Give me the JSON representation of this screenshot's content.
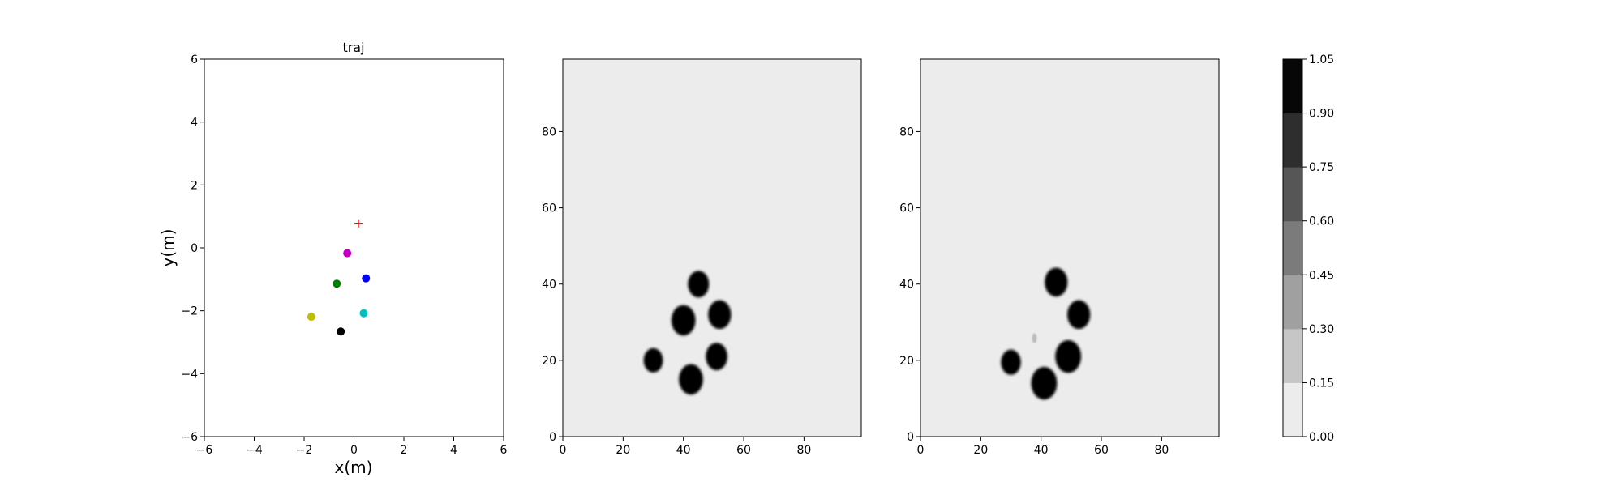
{
  "chart_data": [
    {
      "type": "scatter",
      "title": "traj",
      "xlabel": "x(m)",
      "ylabel": "y(m)",
      "xlim": [
        -6,
        6
      ],
      "ylim": [
        -6,
        6
      ],
      "xticks": [
        -6,
        -4,
        -2,
        0,
        2,
        4,
        6
      ],
      "yticks": [
        -6,
        -4,
        -2,
        0,
        2,
        4,
        6
      ],
      "grid": false,
      "points": [
        {
          "x": 0.18,
          "y": 0.78,
          "color": "#ff0000",
          "marker": "plus"
        },
        {
          "x": -0.27,
          "y": -0.17,
          "color": "#bf00bf",
          "marker": "circle"
        },
        {
          "x": 0.48,
          "y": -0.97,
          "color": "#0000ff",
          "marker": "circle"
        },
        {
          "x": -0.69,
          "y": -1.14,
          "color": "#008000",
          "marker": "circle"
        },
        {
          "x": 0.39,
          "y": -2.08,
          "color": "#00bfbf",
          "marker": "circle"
        },
        {
          "x": -1.71,
          "y": -2.19,
          "color": "#bfbf00",
          "marker": "circle"
        },
        {
          "x": -0.53,
          "y": -2.66,
          "color": "#000000",
          "marker": "circle"
        }
      ]
    },
    {
      "type": "heatmap",
      "xlim": [
        0,
        99
      ],
      "ylim": [
        0,
        99
      ],
      "xticks": [
        0,
        20,
        40,
        60,
        80
      ],
      "yticks": [
        0,
        20,
        40,
        60,
        80
      ],
      "background_value": 0.05,
      "blobs": [
        {
          "x": 45,
          "y": 40,
          "r": 3.5
        },
        {
          "x": 40,
          "y": 30.5,
          "r": 4
        },
        {
          "x": 52,
          "y": 32,
          "r": 3.8
        },
        {
          "x": 30,
          "y": 20,
          "r": 3.2
        },
        {
          "x": 51,
          "y": 21,
          "r": 3.6
        },
        {
          "x": 42.5,
          "y": 15,
          "r": 4
        }
      ]
    },
    {
      "type": "heatmap",
      "xlim": [
        0,
        99
      ],
      "ylim": [
        0,
        99
      ],
      "xticks": [
        0,
        20,
        40,
        60,
        80
      ],
      "yticks": [
        0,
        20,
        40,
        60,
        80
      ],
      "background_value": 0.05,
      "blobs": [
        {
          "x": 45,
          "y": 40.5,
          "r": 3.8
        },
        {
          "x": 52.5,
          "y": 32,
          "r": 3.8
        },
        {
          "x": 30,
          "y": 19.5,
          "r": 3.3
        },
        {
          "x": 49,
          "y": 21,
          "r": 4.3
        },
        {
          "x": 41,
          "y": 14,
          "r": 4.3
        }
      ],
      "faint_spots": [
        {
          "x": 37.8,
          "y": 25.8,
          "r": 0.8,
          "value": 0.25
        }
      ]
    },
    {
      "type": "colorbar",
      "levels": [
        "0.00",
        "0.15",
        "0.30",
        "0.45",
        "0.60",
        "0.75",
        "0.90",
        "1.05"
      ],
      "colors": [
        "#ececec",
        "#c6c6c6",
        "#a0a0a0",
        "#7b7b7b",
        "#565656",
        "#2e2e2e",
        "#070707"
      ]
    }
  ]
}
